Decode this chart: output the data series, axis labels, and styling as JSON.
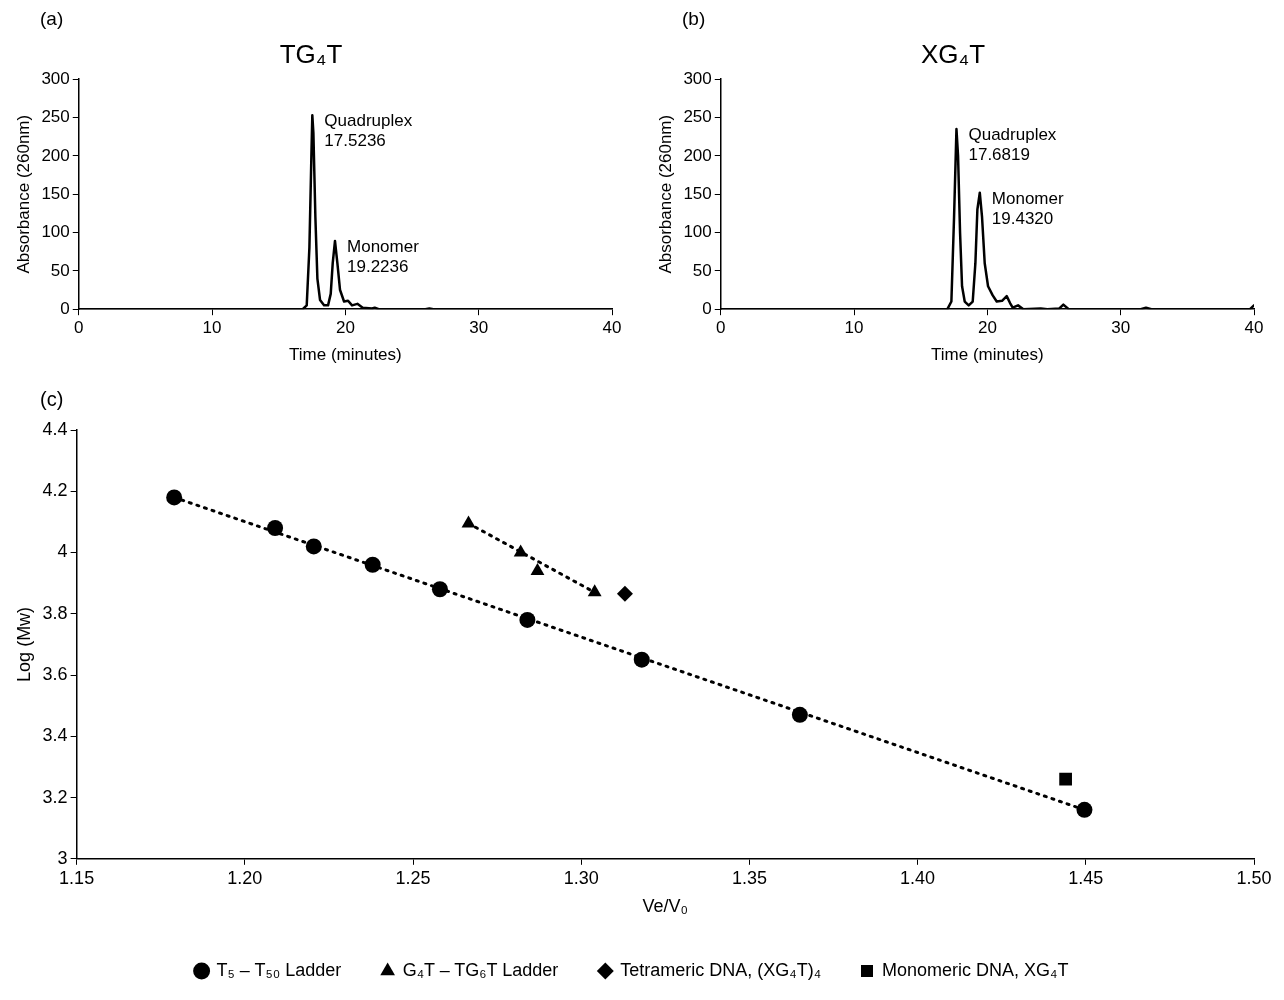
{
  "chart_data": [
    {
      "type": "line",
      "title": "TG₄T",
      "xlabel": "Time (minutes)",
      "ylabel": "Absorbance (260nm)",
      "color": "#000000",
      "marker": "none",
      "grid": false,
      "x": [
        0,
        10,
        16.8,
        17.1,
        17.3,
        17.45,
        17.52,
        17.6,
        17.75,
        17.9,
        18.1,
        18.4,
        18.7,
        18.9,
        19.05,
        19.22,
        19.4,
        19.6,
        19.9,
        20.2,
        20.5,
        20.9,
        21.3,
        22.0,
        22.2,
        22.5,
        26.0,
        26.3,
        26.6,
        40
      ],
      "values": [
        0,
        0,
        0,
        5,
        80,
        200,
        253,
        230,
        120,
        40,
        12,
        5,
        5,
        20,
        60,
        89,
        60,
        25,
        10,
        11,
        5,
        7,
        2,
        1,
        2,
        0,
        0,
        1,
        0,
        0
      ],
      "xlim": [
        0,
        40
      ],
      "xticks": [
        0,
        10,
        20,
        30,
        40
      ],
      "ylim": [
        0,
        300
      ],
      "yticks": [
        0,
        50,
        100,
        150,
        200,
        250,
        300
      ],
      "annotations": [
        "(a)",
        {
          "text": "Quadruplex\n17.5236",
          "x": 17.5236,
          "y": 253
        },
        {
          "text": "Monomer\n19.2236",
          "x": 19.2236,
          "y": 89
        }
      ]
    },
    {
      "type": "line",
      "title": "XG₄T",
      "xlabel": "Time (minutes)",
      "ylabel": "Absorbance (260nm)",
      "color": "#000000",
      "marker": "none",
      "grid": false,
      "x": [
        0,
        10,
        17.0,
        17.3,
        17.5,
        17.68,
        17.8,
        17.95,
        18.1,
        18.3,
        18.6,
        18.9,
        19.1,
        19.25,
        19.43,
        19.6,
        19.8,
        20.05,
        20.4,
        20.7,
        21.1,
        21.45,
        21.7,
        21.9,
        22.3,
        22.7,
        24,
        24.5,
        25.4,
        25.7,
        26.1,
        31.5,
        31.9,
        32.3,
        39.7,
        40
      ],
      "values": [
        0,
        0,
        0,
        10,
        120,
        235,
        200,
        100,
        30,
        10,
        5,
        10,
        60,
        130,
        152,
        120,
        60,
        30,
        18,
        10,
        11,
        17,
        8,
        2,
        5,
        0,
        1,
        0,
        1,
        6,
        0,
        0,
        2,
        0,
        0,
        5
      ],
      "xlim": [
        0,
        40
      ],
      "xticks": [
        0,
        10,
        20,
        30,
        40
      ],
      "ylim": [
        0,
        300
      ],
      "yticks": [
        0,
        50,
        100,
        150,
        200,
        250,
        300
      ],
      "annotations": [
        "(b)",
        {
          "text": "Quadruplex\n17.6819",
          "x": 17.6819,
          "y": 235
        },
        {
          "text": "Monomer\n19.4320",
          "x": 19.432,
          "y": 152
        }
      ]
    },
    {
      "type": "scatter",
      "xlabel": "Ve/V₀",
      "ylabel": "Log (Mw)",
      "grid": false,
      "legend": "bottom",
      "xlim": [
        1.15,
        1.5
      ],
      "xticks": [
        1.15,
        {
          "value": 1.2,
          "label": "1.20"
        },
        1.25,
        {
          "value": 1.3,
          "label": "1.30"
        },
        1.35,
        {
          "value": 1.4,
          "label": "1.40"
        },
        1.45,
        {
          "value": 1.5,
          "label": "1.50"
        }
      ],
      "ylim": [
        3,
        4.4
      ],
      "yticks": [
        3,
        3.2,
        3.4,
        3.6,
        3.8,
        4,
        4.2,
        4.4
      ],
      "annotations": [
        "(c)"
      ],
      "series": [
        {
          "name": "T₅ – T₅₀ Ladder",
          "color": "#000000",
          "marker": "circle",
          "x": [
            1.179,
            1.209,
            1.2205,
            1.238,
            1.258,
            1.284,
            1.318,
            1.365,
            1.4496
          ],
          "values": [
            4.18,
            4.08,
            4.02,
            3.96,
            3.88,
            3.78,
            3.65,
            3.47,
            3.16
          ]
        },
        {
          "name": "G₄T – TG₆T Ladder",
          "color": "#000000",
          "marker": "triangle",
          "x": [
            1.2665,
            1.282,
            1.287,
            1.304
          ],
          "values": [
            4.095,
            4.0,
            3.94,
            3.87
          ]
        },
        {
          "name": "Tetrameric DNA, (XG₄T)₄",
          "color": "#000000",
          "marker": "diamond",
          "x": [
            1.313
          ],
          "values": [
            3.865
          ]
        },
        {
          "name": "Monomeric DNA, XG₄T",
          "color": "#000000",
          "marker": "square",
          "x": [
            1.444
          ],
          "values": [
            3.26
          ]
        },
        {
          "type": "line",
          "color": "#000000",
          "marker": "none",
          "line_style": "dotted",
          "x": [
            1.179,
            1.4496
          ],
          "values": [
            4.18,
            3.16
          ]
        },
        {
          "type": "line",
          "color": "#000000",
          "marker": "none",
          "line_style": "dotted",
          "x": [
            1.2665,
            1.304
          ],
          "values": [
            4.095,
            3.87
          ]
        }
      ]
    }
  ]
}
